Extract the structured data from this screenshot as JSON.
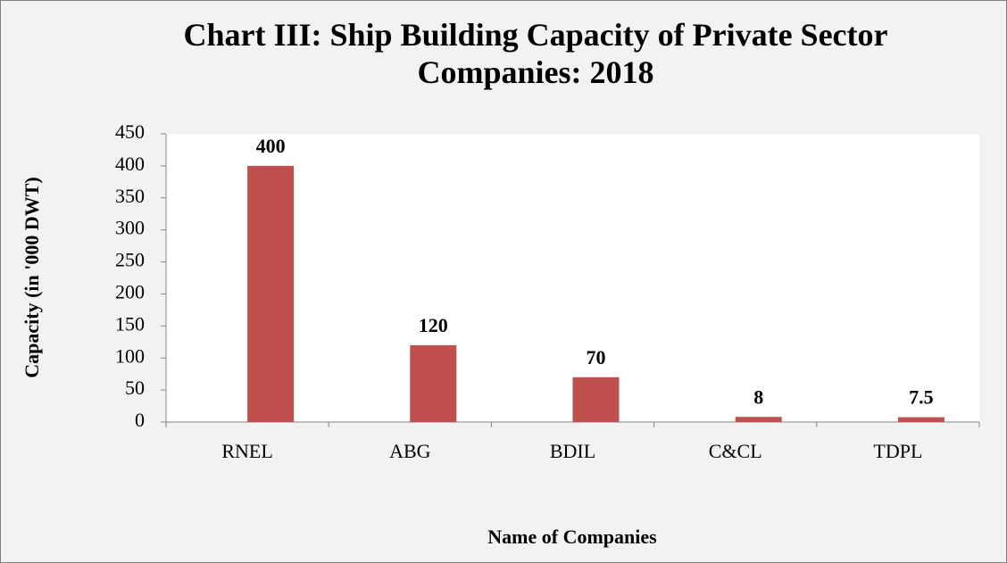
{
  "chart_data": {
    "type": "bar",
    "title": "Chart III: Ship Building Capacity of Private Sector Companies: 2018",
    "x_label": "Name of Companies",
    "y_label": "Capacity (in '000 DWT)",
    "categories": [
      "RNEL",
      "ABG",
      "BDIL",
      "C&CL",
      "TDPL"
    ],
    "values": [
      400,
      120,
      70,
      8,
      7.5
    ],
    "color": "#c0504d",
    "ylim": [
      0,
      450
    ],
    "yticks": [
      0,
      50,
      100,
      150,
      200,
      250,
      300,
      350,
      400,
      450
    ]
  }
}
